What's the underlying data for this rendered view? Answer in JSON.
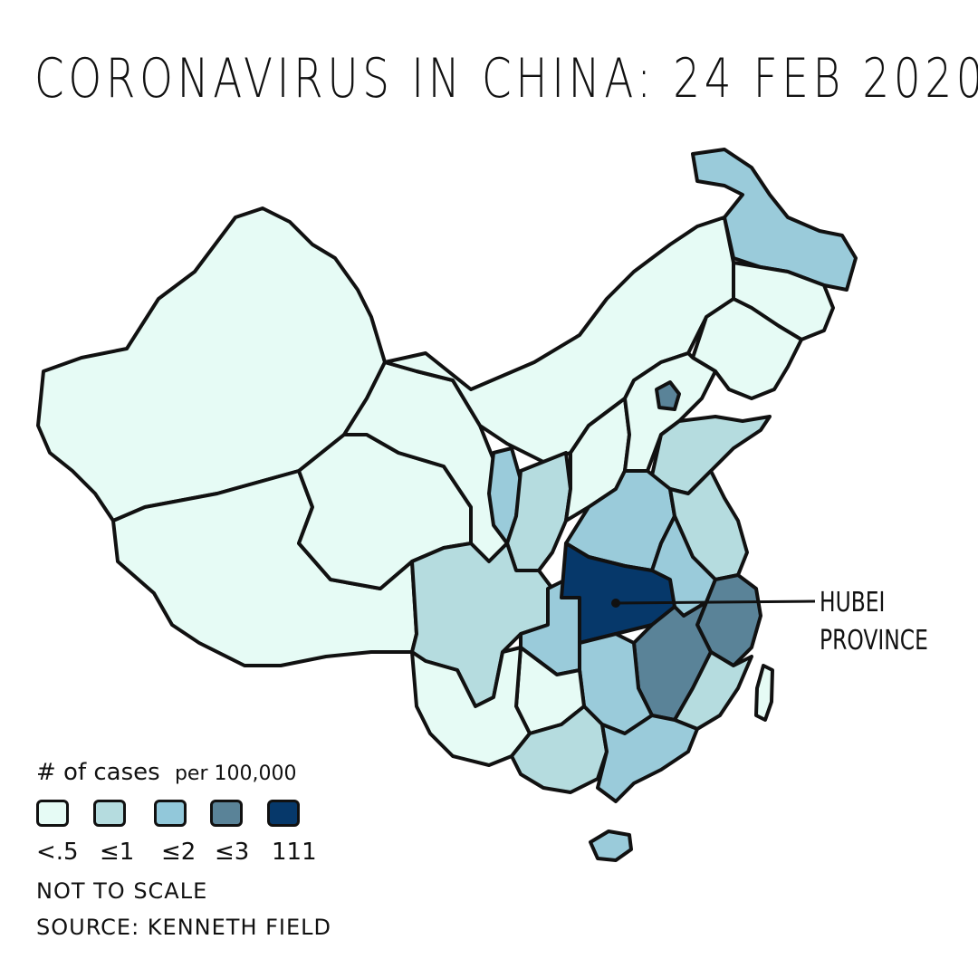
{
  "title": "CORONAVIRUS IN CHINA: 24 FEB 2020",
  "annotation": {
    "line1": "HUBEI",
    "line2": "PROVINCE"
  },
  "legend": {
    "title": "# of cases",
    "subtitle": "per 100,000",
    "items": [
      {
        "label": "<.5",
        "color": "#e6fbf5"
      },
      {
        "label": "≤1",
        "color": "#b5dcdf"
      },
      {
        "label": "≤2",
        "color": "#92c8da"
      },
      {
        "label": "≤3",
        "color": "#5a8398"
      },
      {
        "label": "111",
        "color": "#06386a"
      }
    ]
  },
  "notes": {
    "scale": "NOT TO SCALE",
    "source": "SOURCE: KENNETH FIELD"
  }
}
